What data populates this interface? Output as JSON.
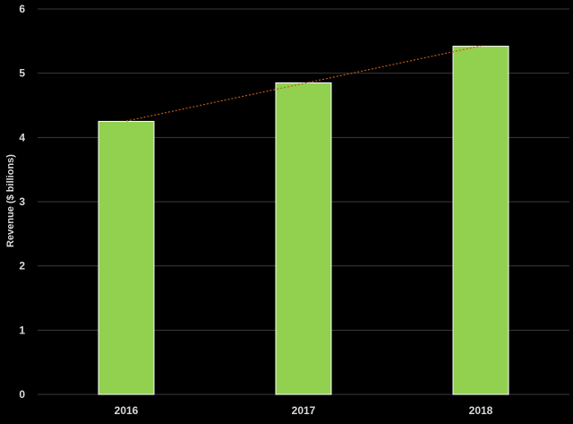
{
  "chart_data": {
    "type": "bar",
    "title": "",
    "xlabel": "",
    "ylabel": "Revenue ($ billions)",
    "categories": [
      "2016",
      "2017",
      "2018"
    ],
    "values": [
      4.25,
      4.85,
      5.42
    ],
    "ylim": [
      0,
      6
    ],
    "yticks": [
      "0",
      "1",
      "2",
      "3",
      "4",
      "5",
      "6"
    ],
    "grid": true,
    "legend": "none",
    "trendline": "linear",
    "colors": {
      "background": "#000000",
      "bar": "#92d050",
      "bar_edge": "#ffffff",
      "gridline": "#3a3a3a",
      "trendline": "#c55a11",
      "text": "#d9d9d9"
    }
  }
}
